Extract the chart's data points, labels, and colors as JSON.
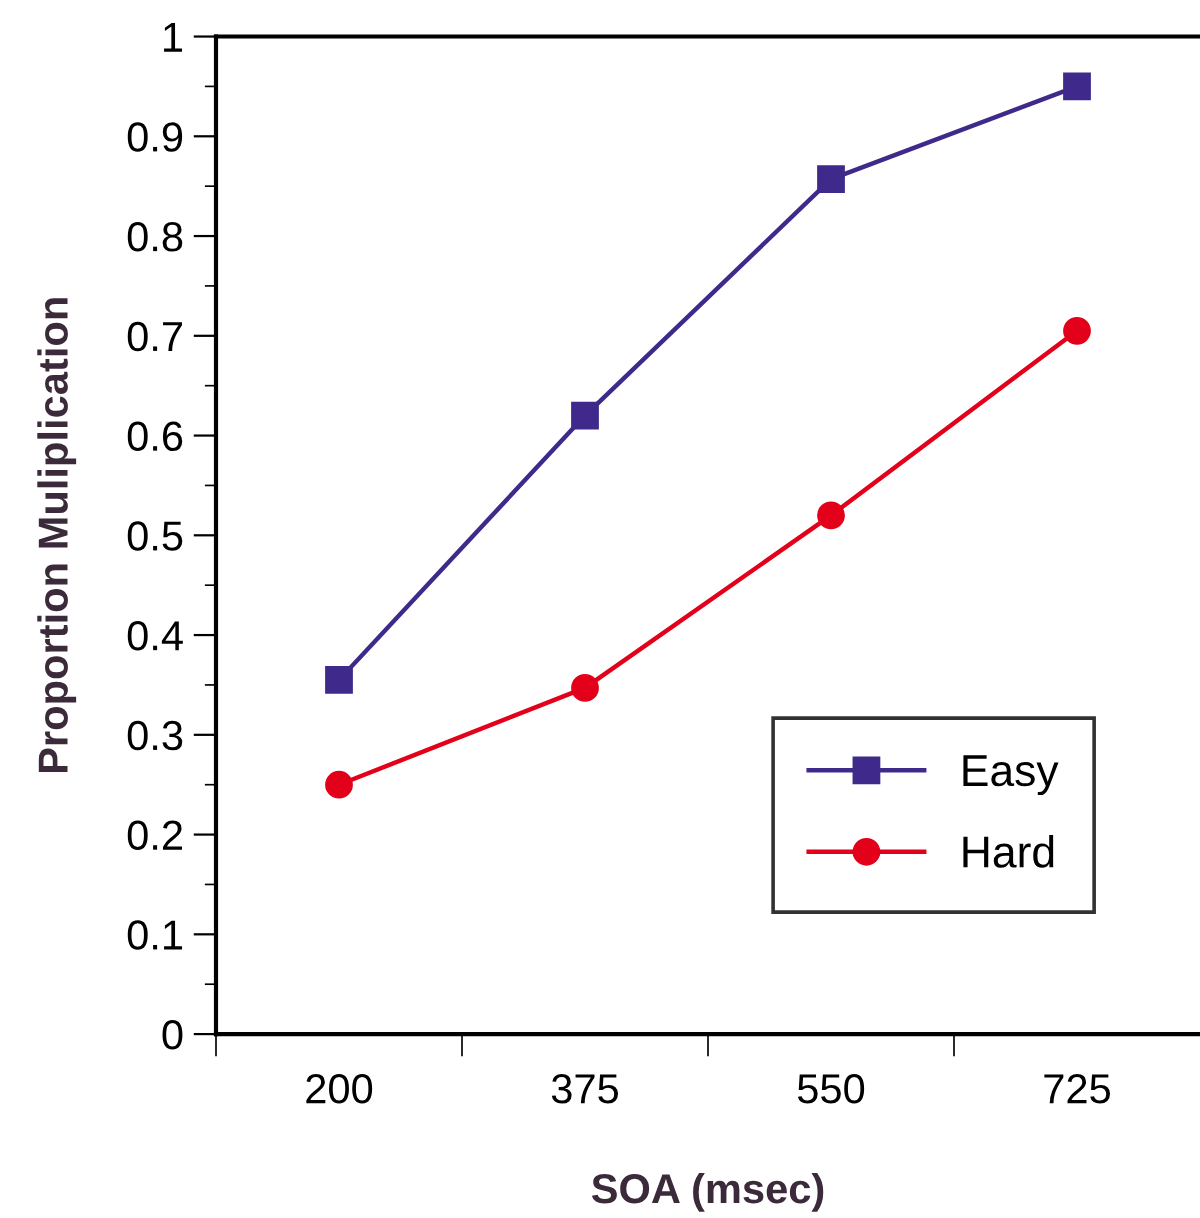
{
  "chart_data": {
    "type": "line",
    "xlabel": "SOA (msec)",
    "ylabel": "Proportion Muliplication",
    "categories": [
      "200",
      "375",
      "550",
      "725"
    ],
    "series": [
      {
        "name": "Easy",
        "color": "#3f2a8c",
        "marker": "square",
        "values": [
          0.355,
          0.62,
          0.857,
          0.95
        ]
      },
      {
        "name": "Hard",
        "color": "#e2001a",
        "marker": "circle",
        "values": [
          0.25,
          0.347,
          0.52,
          0.705
        ]
      }
    ],
    "ylim": [
      0,
      1
    ],
    "yticks": [
      0,
      {
        "value": 0.05,
        "label": null
      },
      0.1,
      {
        "value": 0.15,
        "label": null
      },
      0.2,
      {
        "value": 0.25,
        "label": null
      },
      0.3,
      {
        "value": 0.35,
        "label": null
      },
      0.4,
      {
        "value": 0.45,
        "label": null
      },
      0.5,
      {
        "value": 0.55,
        "label": null
      },
      0.6,
      {
        "value": 0.65,
        "label": null
      },
      0.7,
      {
        "value": 0.75,
        "label": null
      },
      0.8,
      {
        "value": 0.85,
        "label": null
      },
      0.9,
      {
        "value": 0.95,
        "label": null
      },
      1
    ],
    "grid": false,
    "legend": "bottom right",
    "line_style": "solid"
  }
}
